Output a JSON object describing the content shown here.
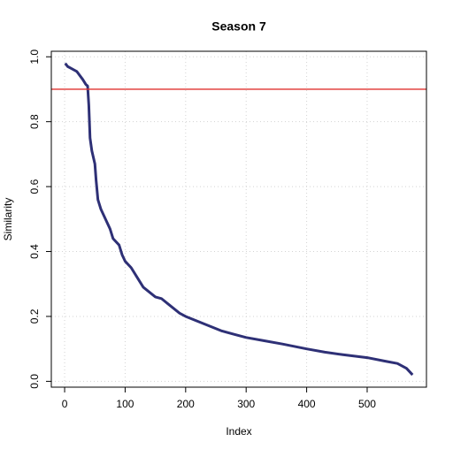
{
  "chart_data": {
    "type": "line",
    "title": "Season 7",
    "x_label": "Index",
    "y_label": "Similarity",
    "x": [
      1,
      5,
      10,
      20,
      30,
      35,
      38,
      40,
      42,
      45,
      50,
      52,
      55,
      60,
      65,
      70,
      75,
      80,
      90,
      95,
      100,
      110,
      120,
      130,
      140,
      150,
      160,
      170,
      180,
      190,
      200,
      220,
      240,
      260,
      280,
      300,
      330,
      360,
      400,
      430,
      460,
      500,
      530,
      550,
      565,
      575
    ],
    "series": [
      {
        "name": "Similarity",
        "color": "#2e3076",
        "values": [
          0.98,
          0.97,
          0.965,
          0.955,
          0.93,
          0.915,
          0.91,
          0.85,
          0.75,
          0.71,
          0.67,
          0.62,
          0.56,
          0.53,
          0.51,
          0.49,
          0.47,
          0.44,
          0.42,
          0.39,
          0.37,
          0.35,
          0.32,
          0.29,
          0.275,
          0.26,
          0.255,
          0.24,
          0.225,
          0.21,
          0.2,
          0.185,
          0.17,
          0.155,
          0.145,
          0.135,
          0.125,
          0.115,
          0.1,
          0.09,
          0.082,
          0.073,
          0.062,
          0.055,
          0.04,
          0.02
        ]
      }
    ],
    "hline": {
      "value": 0.9,
      "color": "#e0322f"
    },
    "xlim": [
      -22,
      598
    ],
    "ylim": [
      -0.018,
      1.017
    ],
    "xticks": [
      0,
      100,
      200,
      300,
      400,
      500
    ],
    "yticks": [
      {
        "value": 0,
        "label": "0.0"
      },
      {
        "value": 0.2,
        "label": "0.2"
      },
      {
        "value": 0.4,
        "label": "0.4"
      },
      {
        "value": 0.6,
        "label": "0.6"
      },
      {
        "value": 0.8,
        "label": "0.8"
      },
      {
        "value": 1,
        "label": "1.0"
      }
    ],
    "grid": true
  }
}
